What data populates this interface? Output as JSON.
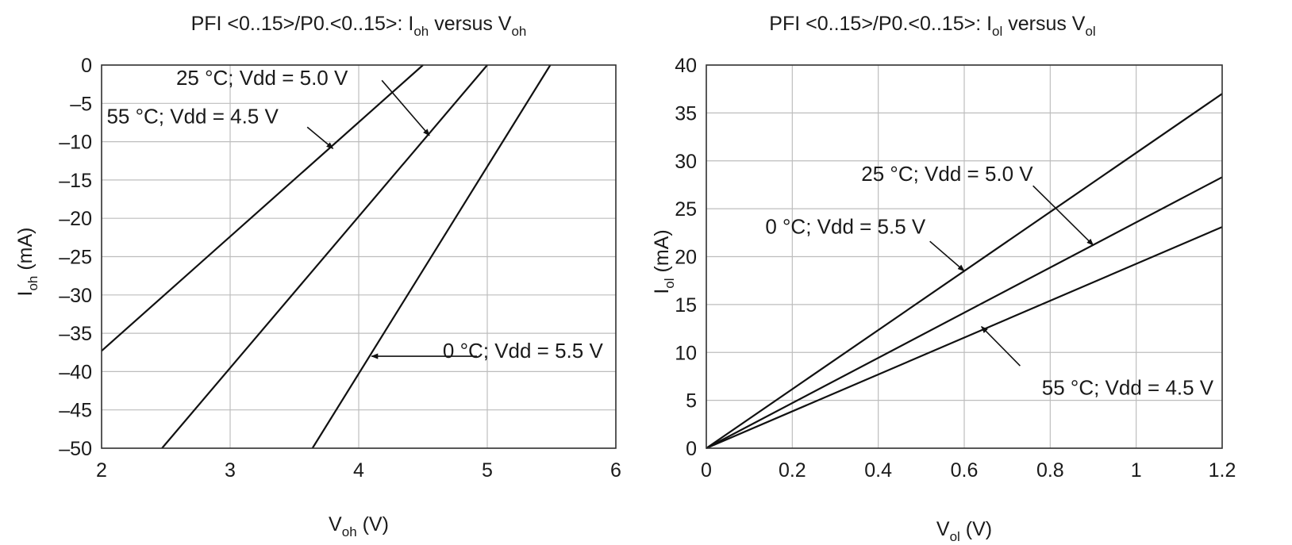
{
  "chart_data": [
    {
      "type": "line",
      "title": {
        "main": "PFI <0..15>/P0.<0..15>: I",
        "sub1": "oh",
        "mid": " versus V",
        "sub2": "oh"
      },
      "xlabel": {
        "main": "V",
        "sub": "oh",
        "unit": " (V)"
      },
      "ylabel": {
        "main": "I",
        "sub": "oh",
        "unit": " (mA)"
      },
      "xlim": [
        2,
        6
      ],
      "ylim": [
        -50,
        0
      ],
      "xticks": [
        2,
        3,
        4,
        5,
        6
      ],
      "yticks": [
        0,
        -5,
        -10,
        -15,
        -20,
        -25,
        -30,
        -35,
        -40,
        -45,
        -50
      ],
      "xtick_labels": [
        "2",
        "3",
        "4",
        "5",
        "6"
      ],
      "ytick_labels": [
        "0",
        "–5",
        "–10",
        "–15",
        "–20",
        "–25",
        "–30",
        "–35",
        "–40",
        "–45",
        "–50"
      ],
      "grid": true,
      "series": [
        {
          "name": "55 °C; Vdd = 4.5 V",
          "x": [
            2.0,
            4.5
          ],
          "y": [
            -37.3,
            0
          ]
        },
        {
          "name": "25 °C; Vdd = 5.0 V",
          "x": [
            2.47,
            5.0
          ],
          "y": [
            -50,
            0
          ]
        },
        {
          "name": "0 °C; Vdd = 5.5 V",
          "x": [
            3.64,
            5.49
          ],
          "y": [
            -50,
            0
          ]
        }
      ],
      "annotations": [
        {
          "text": "25 °C; Vdd = 5.0 V",
          "label_at": [
            2.58,
            -2.6
          ],
          "anchor": "start",
          "arrow_from": [
            4.18,
            -2.0
          ],
          "arrow_to": [
            4.55,
            -9.2
          ]
        },
        {
          "text": "55 °C; Vdd = 4.5 V",
          "label_at": [
            2.04,
            -7.6
          ],
          "anchor": "start",
          "arrow_from": [
            3.6,
            -8.1
          ],
          "arrow_to": [
            3.8,
            -10.9
          ]
        },
        {
          "text": "0 °C; Vdd = 5.5 V",
          "label_at": [
            5.9,
            -38.2
          ],
          "anchor": "end",
          "arrow_from": [
            4.92,
            -38.0
          ],
          "arrow_to": [
            4.1,
            -38.0
          ]
        }
      ]
    },
    {
      "type": "line",
      "title": {
        "main": "PFI <0..15>/P0.<0..15>: I",
        "sub1": "ol",
        "mid": " versus V",
        "sub2": "ol"
      },
      "xlabel": {
        "main": "V",
        "sub": "ol",
        "unit": " (V)"
      },
      "ylabel": {
        "main": "I",
        "sub": "ol",
        "unit": " (mA)"
      },
      "xlim": [
        0,
        1.2
      ],
      "ylim": [
        0,
        40
      ],
      "xticks": [
        0,
        0.2,
        0.4,
        0.6,
        0.8,
        1.0,
        1.2
      ],
      "yticks": [
        0,
        5,
        10,
        15,
        20,
        25,
        30,
        35,
        40
      ],
      "xtick_labels": [
        "0",
        "0.2",
        "0.4",
        "0.6",
        "0.8",
        "1",
        "1.2"
      ],
      "ytick_labels": [
        "0",
        "5",
        "10",
        "15",
        "20",
        "25",
        "30",
        "35",
        "40"
      ],
      "grid": true,
      "series": [
        {
          "name": "0 °C; Vdd = 5.5 V",
          "x": [
            0,
            1.2
          ],
          "y": [
            0,
            37.0
          ]
        },
        {
          "name": "25 °C; Vdd = 5.0 V",
          "x": [
            0,
            1.2
          ],
          "y": [
            0,
            28.3
          ]
        },
        {
          "name": "55 °C; Vdd = 4.5 V",
          "x": [
            0,
            1.2
          ],
          "y": [
            0,
            23.1
          ]
        }
      ],
      "annotations": [
        {
          "text": "25 °C; Vdd = 5.0 V",
          "label_at": [
            0.76,
            27.9
          ],
          "anchor": "end",
          "arrow_from": [
            0.76,
            27.4
          ],
          "arrow_to": [
            0.9,
            21.2
          ]
        },
        {
          "text": "0 °C; Vdd = 5.5 V",
          "label_at": [
            0.51,
            22.4
          ],
          "anchor": "end",
          "arrow_from": [
            0.52,
            21.6
          ],
          "arrow_to": [
            0.6,
            18.5
          ]
        },
        {
          "text": "55 °C; Vdd = 4.5 V",
          "label_at": [
            1.18,
            5.6
          ],
          "anchor": "end",
          "arrow_from": [
            0.73,
            8.6
          ],
          "arrow_to": [
            0.64,
            12.7
          ]
        }
      ]
    }
  ]
}
